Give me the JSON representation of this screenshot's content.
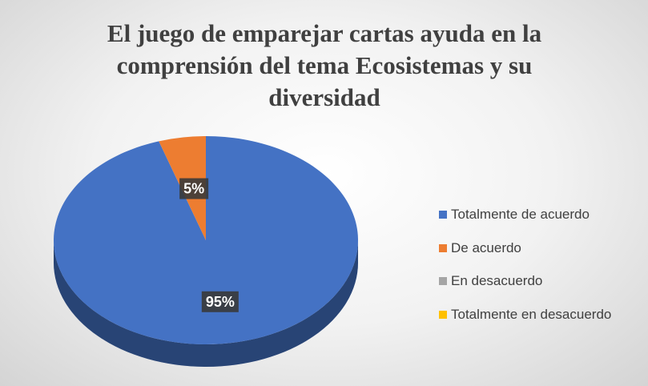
{
  "chart_data": {
    "type": "pie",
    "title": "El juego de emparejar cartas ayuda en la comprensión del tema Ecosistemas y su diversidad",
    "categories": [
      "Totalmente de acuerdo",
      "De acuerdo",
      "En desacuerdo",
      "Totalmente en desacuerdo"
    ],
    "values": [
      95,
      5,
      0,
      0
    ],
    "value_labels": [
      "95%",
      "5%",
      null,
      null
    ],
    "colors": [
      "#4472c4",
      "#ed7d31",
      "#a5a5a5",
      "#ffc000"
    ],
    "legend": "right"
  }
}
